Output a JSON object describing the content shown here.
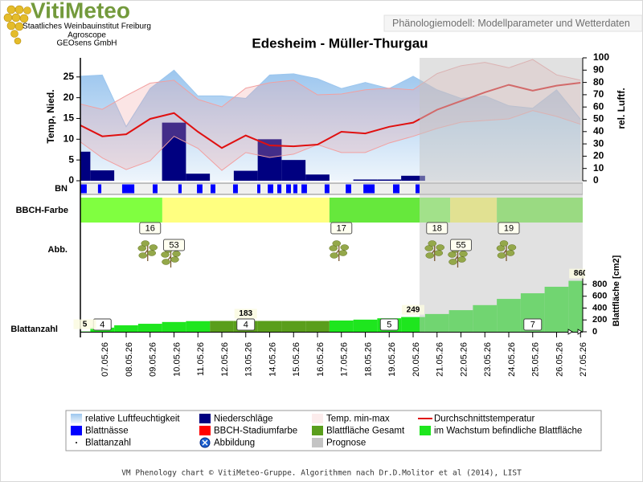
{
  "header": {
    "logo": "VitiMeteo",
    "institutions": [
      "Staatliches Weinbauinstitut Freiburg",
      "Agroscope",
      "GEOsens GmbH"
    ],
    "caption": "Phänologiemodell: Modellparameter und Wetterdaten"
  },
  "chart_data": [
    {
      "type": "combo",
      "title": "Edesheim - Müller-Thurgau",
      "categories": [
        null,
        "07.05.26",
        "08.05.26",
        "09.05.26",
        "10.05.26",
        "11.05.26",
        "12.05.26",
        "13.05.26",
        "14.05.26",
        "15.05.26",
        "16.05.26",
        "17.05.26",
        "18.05.26",
        "19.05.26",
        "20.05.26",
        "21.05.26",
        "22.05.26",
        "23.05.26",
        "24.05.26",
        "25.05.26",
        "26.05.26",
        "27.05.26"
      ],
      "ylabel": "Temp, Nied.",
      "y2label": "rel. Luftf.",
      "ylim": [
        0,
        29.6
      ],
      "yticks": [
        0,
        5,
        10,
        15,
        20,
        25
      ],
      "y2lim": [
        0,
        100
      ],
      "y2ticks": [
        0,
        10,
        20,
        30,
        40,
        50,
        60,
        70,
        80,
        90,
        100
      ],
      "series": [
        {
          "name": "relative Luftfeuchtigkeit",
          "type": "area",
          "axis": "y2",
          "color": "#9cc6ee",
          "values": [
            85,
            86,
            44,
            75,
            90,
            69,
            69,
            67,
            86,
            87,
            83,
            75,
            80,
            75,
            85,
            74,
            67,
            69,
            61,
            59,
            74,
            50
          ]
        },
        {
          "name": "Niederschläge",
          "type": "bar",
          "color": "#000080",
          "values": [
            7,
            2.5,
            0,
            0,
            14,
            1.7,
            0,
            2.4,
            10,
            5,
            1.5,
            0,
            0.3,
            0.3,
            1.2,
            0,
            0,
            0,
            0,
            0,
            0,
            0
          ]
        },
        {
          "name": "Temp. min-max",
          "type": "band",
          "color": "#f2a0a0",
          "low": [
            9.7,
            5.5,
            2.7,
            4.8,
            10.7,
            7.8,
            2.5,
            6.8,
            5.6,
            6.4,
            8.7,
            6.8,
            6.8,
            9.1,
            10.7,
            12.6,
            14.1,
            14.5,
            14.9,
            16.9,
            15.5,
            13.6
          ],
          "high": [
            18.6,
            17.2,
            20.5,
            23.5,
            24.2,
            19.6,
            17.8,
            22.3,
            23.6,
            24.2,
            20.7,
            20.9,
            21.9,
            22.3,
            21.9,
            25.8,
            27.7,
            28.5,
            27.2,
            29.2,
            25.5,
            24.2
          ]
        },
        {
          "name": "Durchschnittstemperatur",
          "type": "line",
          "color": "#e01010",
          "values": [
            13.6,
            10.7,
            11.2,
            14.9,
            16.3,
            11.8,
            7.9,
            10.9,
            8.5,
            8.3,
            8.7,
            11.8,
            11.4,
            13.0,
            14.0,
            17.1,
            19.2,
            21.3,
            23.1,
            21.7,
            22.9,
            23.6
          ]
        }
      ]
    },
    {
      "type": "strip",
      "label": "BN",
      "name": "Blattnässe",
      "color": "#0000ff",
      "intervals": [
        [
          0.08,
          0.35
        ],
        [
          0.82,
          0.96
        ],
        [
          1.83,
          2.34
        ],
        [
          3.11,
          3.31
        ],
        [
          4.18,
          4.32
        ],
        [
          4.96,
          5.19
        ],
        [
          5.53,
          5.73
        ],
        [
          6.47,
          6.67
        ],
        [
          7.48,
          7.61
        ],
        [
          7.92,
          8.15
        ],
        [
          8.32,
          8.49
        ],
        [
          8.69,
          8.89
        ],
        [
          8.99,
          9.16
        ],
        [
          9.33,
          9.56
        ],
        [
          10.3,
          10.5
        ],
        [
          11.18,
          11.41
        ],
        [
          11.92,
          12.39
        ],
        [
          13.16,
          13.43
        ],
        [
          14.1,
          14.27
        ]
      ]
    },
    {
      "type": "segments",
      "label": "BBCH-Farbe",
      "name": "BBCH-Stadiumfarbe",
      "color": "#ff0000",
      "segments": [
        {
          "from": 0,
          "to": 3.51,
          "color": "#80ff40"
        },
        {
          "from": 3.51,
          "to": 10.5,
          "color": "#ffff80"
        },
        {
          "from": 10.5,
          "to": 14.27,
          "color": "#66e83c"
        },
        {
          "from": 14.27,
          "to": 15.55,
          "color": "#80ff50"
        },
        {
          "from": 15.55,
          "to": 17.5,
          "color": "#ffff60"
        },
        {
          "from": 17.5,
          "to": 21.2,
          "color": "#70f040"
        }
      ]
    },
    {
      "type": "stages",
      "label": "Abb.",
      "name": "Abbildung",
      "color": "#1a5fd0",
      "stages": [
        {
          "x": 3,
          "label": "16"
        },
        {
          "x": 4,
          "label": "53"
        },
        {
          "x": 11,
          "label": "17"
        },
        {
          "x": 15,
          "label": "18"
        },
        {
          "x": 16,
          "label": "55"
        },
        {
          "x": 18,
          "label": "19"
        }
      ]
    },
    {
      "type": "bar",
      "label": "Blattanzahl",
      "y2label": "Blattfläche [cm2]",
      "y2lim": [
        0,
        990
      ],
      "y2ticks": [
        0,
        200,
        400,
        600,
        800
      ],
      "series": [
        {
          "name": "Blattfläche Gesamt",
          "axis": "y2",
          "color": "#5a9e1c",
          "values": [
            null,
            null,
            null,
            null,
            null,
            null,
            183,
            183,
            183,
            183,
            183,
            null,
            null,
            null,
            null,
            null,
            null,
            null,
            null,
            null,
            null,
            null
          ],
          "value_labels": [
            null,
            null,
            null,
            null,
            null,
            null,
            null,
            "183",
            null,
            null,
            null,
            null,
            null,
            null,
            null,
            null,
            null,
            null,
            null,
            null,
            null,
            null
          ]
        },
        {
          "name": "im Wachstum befindliche Blattfläche",
          "axis": "y2",
          "color": "#1ee61e",
          "values": [
            5,
            70,
            110,
            135,
            165,
            180,
            null,
            null,
            null,
            null,
            null,
            190,
            205,
            228,
            249,
            300,
            365,
            450,
            555,
            650,
            760,
            860
          ],
          "value_labels": [
            "5",
            null,
            null,
            null,
            null,
            null,
            null,
            null,
            null,
            null,
            null,
            null,
            null,
            null,
            "249",
            null,
            null,
            null,
            null,
            null,
            null,
            "860"
          ]
        }
      ],
      "leaf_count": {
        "name": "Blattanzahl",
        "values": [
          null,
          4,
          null,
          null,
          null,
          null,
          null,
          4,
          null,
          null,
          null,
          null,
          null,
          5,
          null,
          null,
          null,
          null,
          null,
          7,
          null,
          null
        ]
      }
    }
  ],
  "forecast": {
    "name": "Prognose",
    "color": "#c4c4c4",
    "start": 14.27
  },
  "footer": "VM Phenology chart © VitiMeteo-Gruppe. Algorithmen nach Dr.D.Molitor et al (2014), LIST"
}
